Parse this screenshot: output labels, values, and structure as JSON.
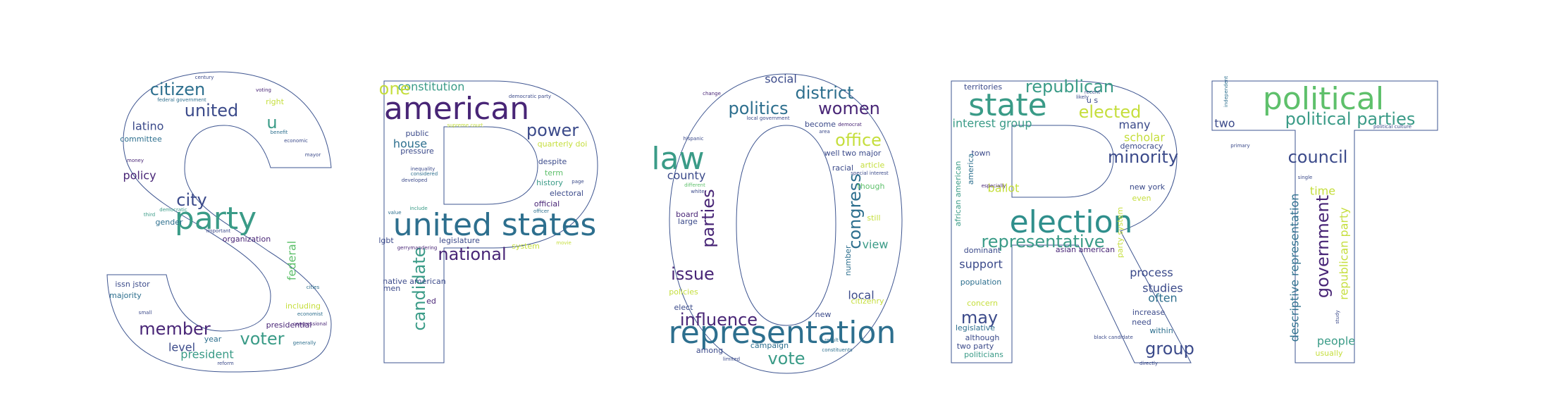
{
  "outline_color": "#3e5590",
  "palette": [
    "#3b4a8a",
    "#2d6f8e",
    "#3a9b87",
    "#5ec06b",
    "#c5de3c",
    "#482576",
    "#2f8f8c"
  ],
  "letters": [
    {
      "glyph": "S",
      "words": [
        {
          "t": "citizen",
          "s": 1,
          "c": 1
        },
        {
          "t": "united",
          "s": 1,
          "c": 0
        },
        {
          "t": "right",
          "s": 3,
          "c": 4
        },
        {
          "t": "latino",
          "s": 2,
          "c": 0
        },
        {
          "t": "u",
          "s": 1,
          "c": 2
        },
        {
          "t": "committee",
          "s": 3,
          "c": 1
        },
        {
          "t": "policy",
          "s": 2,
          "c": 5
        },
        {
          "t": "city",
          "s": 1,
          "c": 0
        },
        {
          "t": "party",
          "s": 0,
          "c": 2
        },
        {
          "t": "organization",
          "s": 3,
          "c": 5
        },
        {
          "t": "gender",
          "s": 3,
          "c": 1
        },
        {
          "t": "federal",
          "s": 2,
          "c": 3
        },
        {
          "t": "issn jstor",
          "s": 3,
          "c": 0
        },
        {
          "t": "majority",
          "s": 3,
          "c": 1
        },
        {
          "t": "member",
          "s": 1,
          "c": 5
        },
        {
          "t": "voter",
          "s": 1,
          "c": 2
        },
        {
          "t": "level",
          "s": 2,
          "c": 0
        },
        {
          "t": "year",
          "s": 3,
          "c": 1
        },
        {
          "t": "president",
          "s": 2,
          "c": 2
        },
        {
          "t": "presidential",
          "s": 3,
          "c": 5
        },
        {
          "t": "including",
          "s": 3,
          "c": 4
        },
        {
          "t": "money",
          "s": 4,
          "c": 5
        },
        {
          "t": "benefit",
          "s": 4,
          "c": 1
        },
        {
          "t": "economic",
          "s": 4,
          "c": 0
        },
        {
          "t": "democratic",
          "s": 4,
          "c": 2
        },
        {
          "t": "mayor",
          "s": 4,
          "c": 0
        },
        {
          "t": "cities",
          "s": 4,
          "c": 1
        },
        {
          "t": "congressional",
          "s": 4,
          "c": 5
        },
        {
          "t": "reform",
          "s": 4,
          "c": 0
        },
        {
          "t": "federal government",
          "s": 4,
          "c": 1
        },
        {
          "t": "century",
          "s": 4,
          "c": 0
        },
        {
          "t": "voting",
          "s": 4,
          "c": 5
        },
        {
          "t": "small",
          "s": 4,
          "c": 0
        },
        {
          "t": "generally",
          "s": 4,
          "c": 1
        },
        {
          "t": "important",
          "s": 4,
          "c": 0
        },
        {
          "t": "third",
          "s": 4,
          "c": 2
        },
        {
          "t": "economist",
          "s": 4,
          "c": 1
        }
      ]
    },
    {
      "glyph": "P",
      "words": [
        {
          "t": "constitution",
          "s": 2,
          "c": 2
        },
        {
          "t": "one",
          "s": 1,
          "c": 4
        },
        {
          "t": "american",
          "s": 0,
          "c": 5
        },
        {
          "t": "democratic party",
          "s": 4,
          "c": 0
        },
        {
          "t": "power",
          "s": 1,
          "c": 0
        },
        {
          "t": "public",
          "s": 3,
          "c": 0
        },
        {
          "t": "house",
          "s": 2,
          "c": 1
        },
        {
          "t": "pressure",
          "s": 3,
          "c": 0
        },
        {
          "t": "quarterly doi",
          "s": 3,
          "c": 4
        },
        {
          "t": "despite",
          "s": 3,
          "c": 0
        },
        {
          "t": "term",
          "s": 3,
          "c": 3
        },
        {
          "t": "history",
          "s": 3,
          "c": 2
        },
        {
          "t": "electoral",
          "s": 3,
          "c": 0
        },
        {
          "t": "official",
          "s": 3,
          "c": 5
        },
        {
          "t": "united states",
          "s": 0,
          "c": 1
        },
        {
          "t": "legislature",
          "s": 3,
          "c": 0
        },
        {
          "t": "national",
          "s": 1,
          "c": 5
        },
        {
          "t": "candidate",
          "s": 1,
          "c": 2
        },
        {
          "t": "lgbt",
          "s": 3,
          "c": 0
        },
        {
          "t": "system",
          "s": 3,
          "c": 4
        },
        {
          "t": "native american",
          "s": 3,
          "c": 0
        },
        {
          "t": "inequality",
          "s": 4,
          "c": 0
        },
        {
          "t": "considered",
          "s": 4,
          "c": 1
        },
        {
          "t": "developed",
          "s": 4,
          "c": 0
        },
        {
          "t": "include",
          "s": 4,
          "c": 2
        },
        {
          "t": "men",
          "s": 3,
          "c": 0
        },
        {
          "t": "ed",
          "s": 3,
          "c": 5
        },
        {
          "t": "supreme court",
          "s": 4,
          "c": 4
        },
        {
          "t": "officer",
          "s": 4,
          "c": 1
        },
        {
          "t": "page",
          "s": 4,
          "c": 0
        },
        {
          "t": "gerrymandering",
          "s": 4,
          "c": 5
        },
        {
          "t": "value",
          "s": 4,
          "c": 1
        },
        {
          "t": "movie",
          "s": 4,
          "c": 4
        }
      ]
    },
    {
      "glyph": "O",
      "words": [
        {
          "t": "social",
          "s": 2,
          "c": 0
        },
        {
          "t": "district",
          "s": 1,
          "c": 1
        },
        {
          "t": "politics",
          "s": 1,
          "c": 1
        },
        {
          "t": "women",
          "s": 1,
          "c": 5
        },
        {
          "t": "local government",
          "s": 4,
          "c": 0
        },
        {
          "t": "become",
          "s": 3,
          "c": 0
        },
        {
          "t": "democrat",
          "s": 4,
          "c": 5
        },
        {
          "t": "office",
          "s": 1,
          "c": 4
        },
        {
          "t": "law",
          "s": 0,
          "c": 2
        },
        {
          "t": "well two major",
          "s": 3,
          "c": 0
        },
        {
          "t": "article",
          "s": 3,
          "c": 4
        },
        {
          "t": "county",
          "s": 2,
          "c": 0
        },
        {
          "t": "congress",
          "s": 1,
          "c": 1
        },
        {
          "t": "parties",
          "s": 1,
          "c": 5
        },
        {
          "t": "board",
          "s": 3,
          "c": 5
        },
        {
          "t": "large",
          "s": 3,
          "c": 0
        },
        {
          "t": "though",
          "s": 3,
          "c": 3
        },
        {
          "t": "racial",
          "s": 3,
          "c": 0
        },
        {
          "t": "still",
          "s": 3,
          "c": 4
        },
        {
          "t": "view",
          "s": 2,
          "c": 2
        },
        {
          "t": "issue",
          "s": 1,
          "c": 5
        },
        {
          "t": "local",
          "s": 2,
          "c": 0
        },
        {
          "t": "number",
          "s": 3,
          "c": 1
        },
        {
          "t": "citizenry",
          "s": 3,
          "c": 4
        },
        {
          "t": "influence",
          "s": 1,
          "c": 5
        },
        {
          "t": "new",
          "s": 3,
          "c": 0
        },
        {
          "t": "representation",
          "s": 0,
          "c": 1
        },
        {
          "t": "among",
          "s": 3,
          "c": 0
        },
        {
          "t": "campaign",
          "s": 3,
          "c": 1
        },
        {
          "t": "vote",
          "s": 1,
          "c": 2
        },
        {
          "t": "elect",
          "s": 3,
          "c": 0
        },
        {
          "t": "policies",
          "s": 3,
          "c": 4
        },
        {
          "t": "hispanic",
          "s": 4,
          "c": 0
        },
        {
          "t": "different",
          "s": 4,
          "c": 3
        },
        {
          "t": "special interest",
          "s": 4,
          "c": 0
        },
        {
          "t": "change",
          "s": 4,
          "c": 5
        },
        {
          "t": "limited",
          "s": 4,
          "c": 0
        },
        {
          "t": "result",
          "s": 4,
          "c": 1
        },
        {
          "t": "area",
          "s": 4,
          "c": 0
        },
        {
          "t": "white",
          "s": 4,
          "c": 0
        },
        {
          "t": "constituents",
          "s": 4,
          "c": 1
        }
      ]
    },
    {
      "glyph": "R",
      "words": [
        {
          "t": "territories",
          "s": 3,
          "c": 0
        },
        {
          "t": "republican",
          "s": 1,
          "c": 2
        },
        {
          "t": "state",
          "s": 0,
          "c": 2
        },
        {
          "t": "u s",
          "s": 3,
          "c": 0
        },
        {
          "t": "elected",
          "s": 1,
          "c": 4
        },
        {
          "t": "interest group",
          "s": 2,
          "c": 2
        },
        {
          "t": "many",
          "s": 2,
          "c": 0
        },
        {
          "t": "scholar",
          "s": 2,
          "c": 4
        },
        {
          "t": "democracy",
          "s": 3,
          "c": 0
        },
        {
          "t": "minority",
          "s": 1,
          "c": 0
        },
        {
          "t": "town",
          "s": 3,
          "c": 0
        },
        {
          "t": "america",
          "s": 3,
          "c": 1
        },
        {
          "t": "african american",
          "s": 3,
          "c": 2
        },
        {
          "t": "ballot",
          "s": 2,
          "c": 4
        },
        {
          "t": "new york",
          "s": 3,
          "c": 0
        },
        {
          "t": "even",
          "s": 3,
          "c": 4
        },
        {
          "t": "election",
          "s": 0,
          "c": 6
        },
        {
          "t": "representative",
          "s": 1,
          "c": 2
        },
        {
          "t": "party system",
          "s": 3,
          "c": 4
        },
        {
          "t": "dominant",
          "s": 3,
          "c": 0
        },
        {
          "t": "support",
          "s": 2,
          "c": 0
        },
        {
          "t": "population",
          "s": 3,
          "c": 1
        },
        {
          "t": "process",
          "s": 2,
          "c": 0
        },
        {
          "t": "studies",
          "s": 2,
          "c": 0
        },
        {
          "t": "often",
          "s": 2,
          "c": 1
        },
        {
          "t": "concern",
          "s": 3,
          "c": 4
        },
        {
          "t": "may",
          "s": 1,
          "c": 0
        },
        {
          "t": "increase",
          "s": 3,
          "c": 0
        },
        {
          "t": "need",
          "s": 3,
          "c": 0
        },
        {
          "t": "legislative",
          "s": 3,
          "c": 1
        },
        {
          "t": "although",
          "s": 3,
          "c": 0
        },
        {
          "t": "two party",
          "s": 3,
          "c": 0
        },
        {
          "t": "group",
          "s": 1,
          "c": 0
        },
        {
          "t": "politicians",
          "s": 3,
          "c": 2
        },
        {
          "t": "within",
          "s": 3,
          "c": 1
        },
        {
          "t": "asian american",
          "s": 3,
          "c": 5
        },
        {
          "t": "black candidate",
          "s": 4,
          "c": 0
        },
        {
          "t": "likely",
          "s": 4,
          "c": 0
        },
        {
          "t": "recent",
          "s": 4,
          "c": 0
        },
        {
          "t": "especially",
          "s": 4,
          "c": 5
        },
        {
          "t": "directly",
          "s": 4,
          "c": 0
        }
      ]
    },
    {
      "glyph": "T",
      "words": [
        {
          "t": "political",
          "s": 0,
          "c": 3
        },
        {
          "t": "independent",
          "s": 4,
          "c": 1
        },
        {
          "t": "two",
          "s": 2,
          "c": 0
        },
        {
          "t": "political parties",
          "s": 1,
          "c": 2
        },
        {
          "t": "primary",
          "s": 4,
          "c": 0
        },
        {
          "t": "council",
          "s": 1,
          "c": 0
        },
        {
          "t": "time",
          "s": 2,
          "c": 4
        },
        {
          "t": "government",
          "s": 1,
          "c": 5
        },
        {
          "t": "descriptive representation",
          "s": 2,
          "c": 1
        },
        {
          "t": "republican party",
          "s": 2,
          "c": 4
        },
        {
          "t": "people",
          "s": 2,
          "c": 2
        },
        {
          "t": "usually",
          "s": 3,
          "c": 4
        },
        {
          "t": "political culture",
          "s": 4,
          "c": 0
        },
        {
          "t": "study",
          "s": 4,
          "c": 0
        },
        {
          "t": "single",
          "s": 4,
          "c": 0
        }
      ]
    }
  ]
}
